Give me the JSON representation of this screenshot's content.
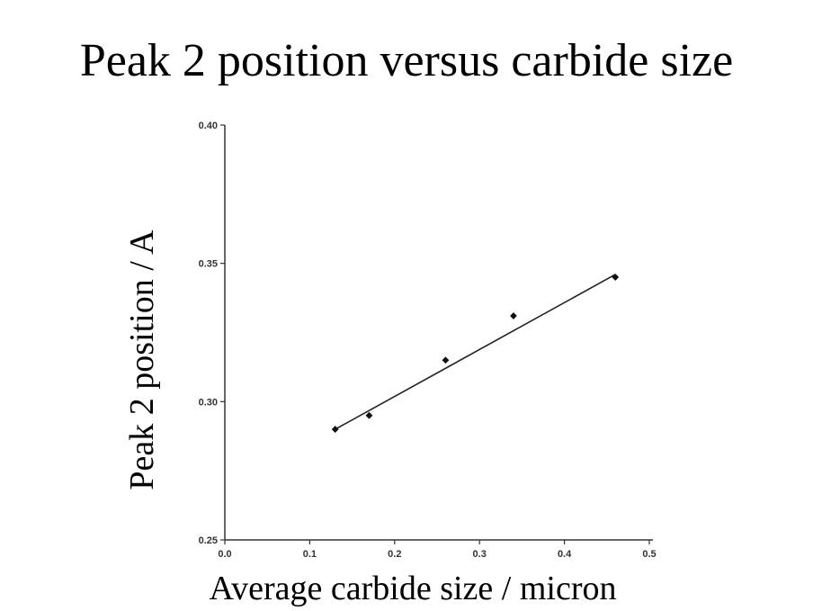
{
  "chart_data": {
    "type": "scatter",
    "title": "Peak 2 position versus carbide size",
    "xlabel": "Average carbide size / micron",
    "ylabel": "Peak 2 position / A",
    "xlim": [
      0.0,
      0.5
    ],
    "ylim": [
      0.25,
      0.4
    ],
    "x_ticks": [
      "0.0",
      "0.1",
      "0.2",
      "0.3",
      "0.4",
      "0.5"
    ],
    "y_ticks": [
      "0.25",
      "0.30",
      "0.35",
      "0.40"
    ],
    "grid": false,
    "legend": "none",
    "points": [
      {
        "x": 0.13,
        "y": 0.29
      },
      {
        "x": 0.17,
        "y": 0.295
      },
      {
        "x": 0.26,
        "y": 0.315
      },
      {
        "x": 0.34,
        "y": 0.331
      },
      {
        "x": 0.46,
        "y": 0.345
      }
    ],
    "fit_line": {
      "x_start": 0.13,
      "y_start": 0.29,
      "x_end": 0.46,
      "y_end": 0.346
    },
    "colors": {
      "points": "#111111",
      "line": "#222222",
      "axes": "#333333"
    }
  }
}
